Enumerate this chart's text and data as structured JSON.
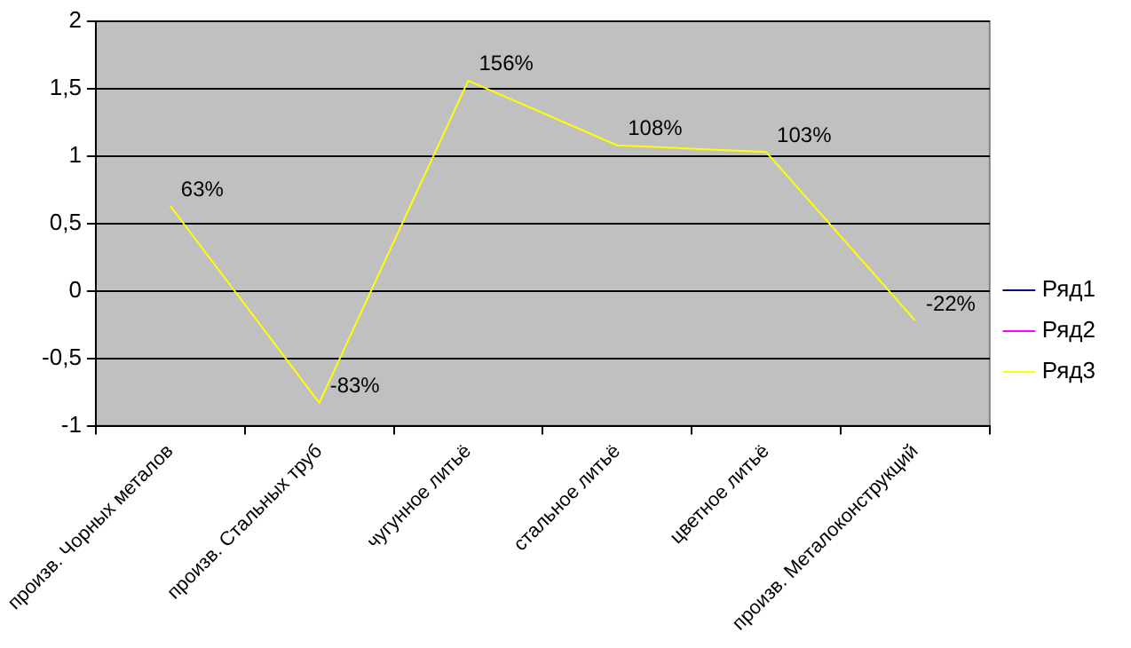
{
  "chart_data": {
    "type": "line",
    "categories": [
      "произв. Чорных металов",
      "произв. Стальных труб",
      "чугунное литьё",
      "стальное литьё",
      "цветное литьё",
      "произв. Металоконструкций"
    ],
    "series": [
      {
        "name": "Ряд1",
        "color": "#000080",
        "values": [
          null,
          null,
          null,
          null,
          null,
          null
        ]
      },
      {
        "name": "Ряд2",
        "color": "#ff00ff",
        "values": [
          null,
          null,
          null,
          null,
          null,
          null
        ]
      },
      {
        "name": "Ряд3",
        "color": "#ffff00",
        "values": [
          0.63,
          -0.83,
          1.56,
          1.08,
          1.03,
          -0.22
        ],
        "value_labels": [
          "63%",
          "-83%",
          "156%",
          "108%",
          "103%",
          "-22%"
        ]
      }
    ],
    "ylim": [
      -1,
      2
    ],
    "yticks": [
      {
        "value": -1,
        "label": "-1"
      },
      {
        "value": -0.5,
        "label": "-0,5"
      },
      {
        "value": 0,
        "label": "0"
      },
      {
        "value": 0.5,
        "label": "0,5"
      },
      {
        "value": 1,
        "label": "1"
      },
      {
        "value": 1.5,
        "label": "1,5"
      },
      {
        "value": 2,
        "label": "2"
      }
    ],
    "grid": "y",
    "legend": "right",
    "marker": "none",
    "line_style": "solid"
  }
}
